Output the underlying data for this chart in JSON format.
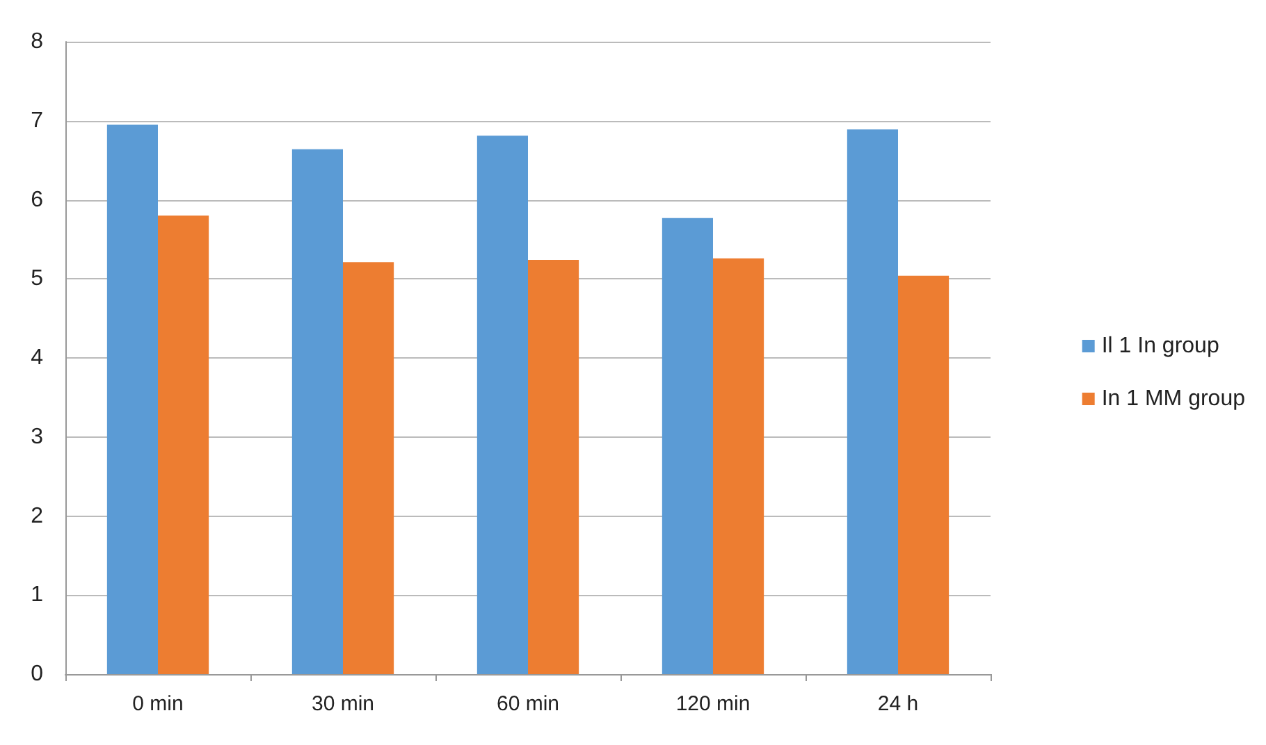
{
  "chart_data": {
    "type": "bar",
    "categories": [
      "0 min",
      "30 min",
      "60 min",
      "120 min",
      "24 h"
    ],
    "series": [
      {
        "name": "Il 1 In group",
        "color": "#5b9bd5",
        "values": [
          6.95,
          6.64,
          6.81,
          5.77,
          6.89
        ]
      },
      {
        "name": "In 1 MM group",
        "color": "#ed7d31",
        "values": [
          5.8,
          5.21,
          5.24,
          5.26,
          5.04
        ]
      }
    ],
    "ylim": [
      0,
      8
    ],
    "yticks": [
      0,
      1,
      2,
      3,
      4,
      5,
      6,
      7,
      8
    ],
    "grid": "y",
    "legend": "right"
  }
}
